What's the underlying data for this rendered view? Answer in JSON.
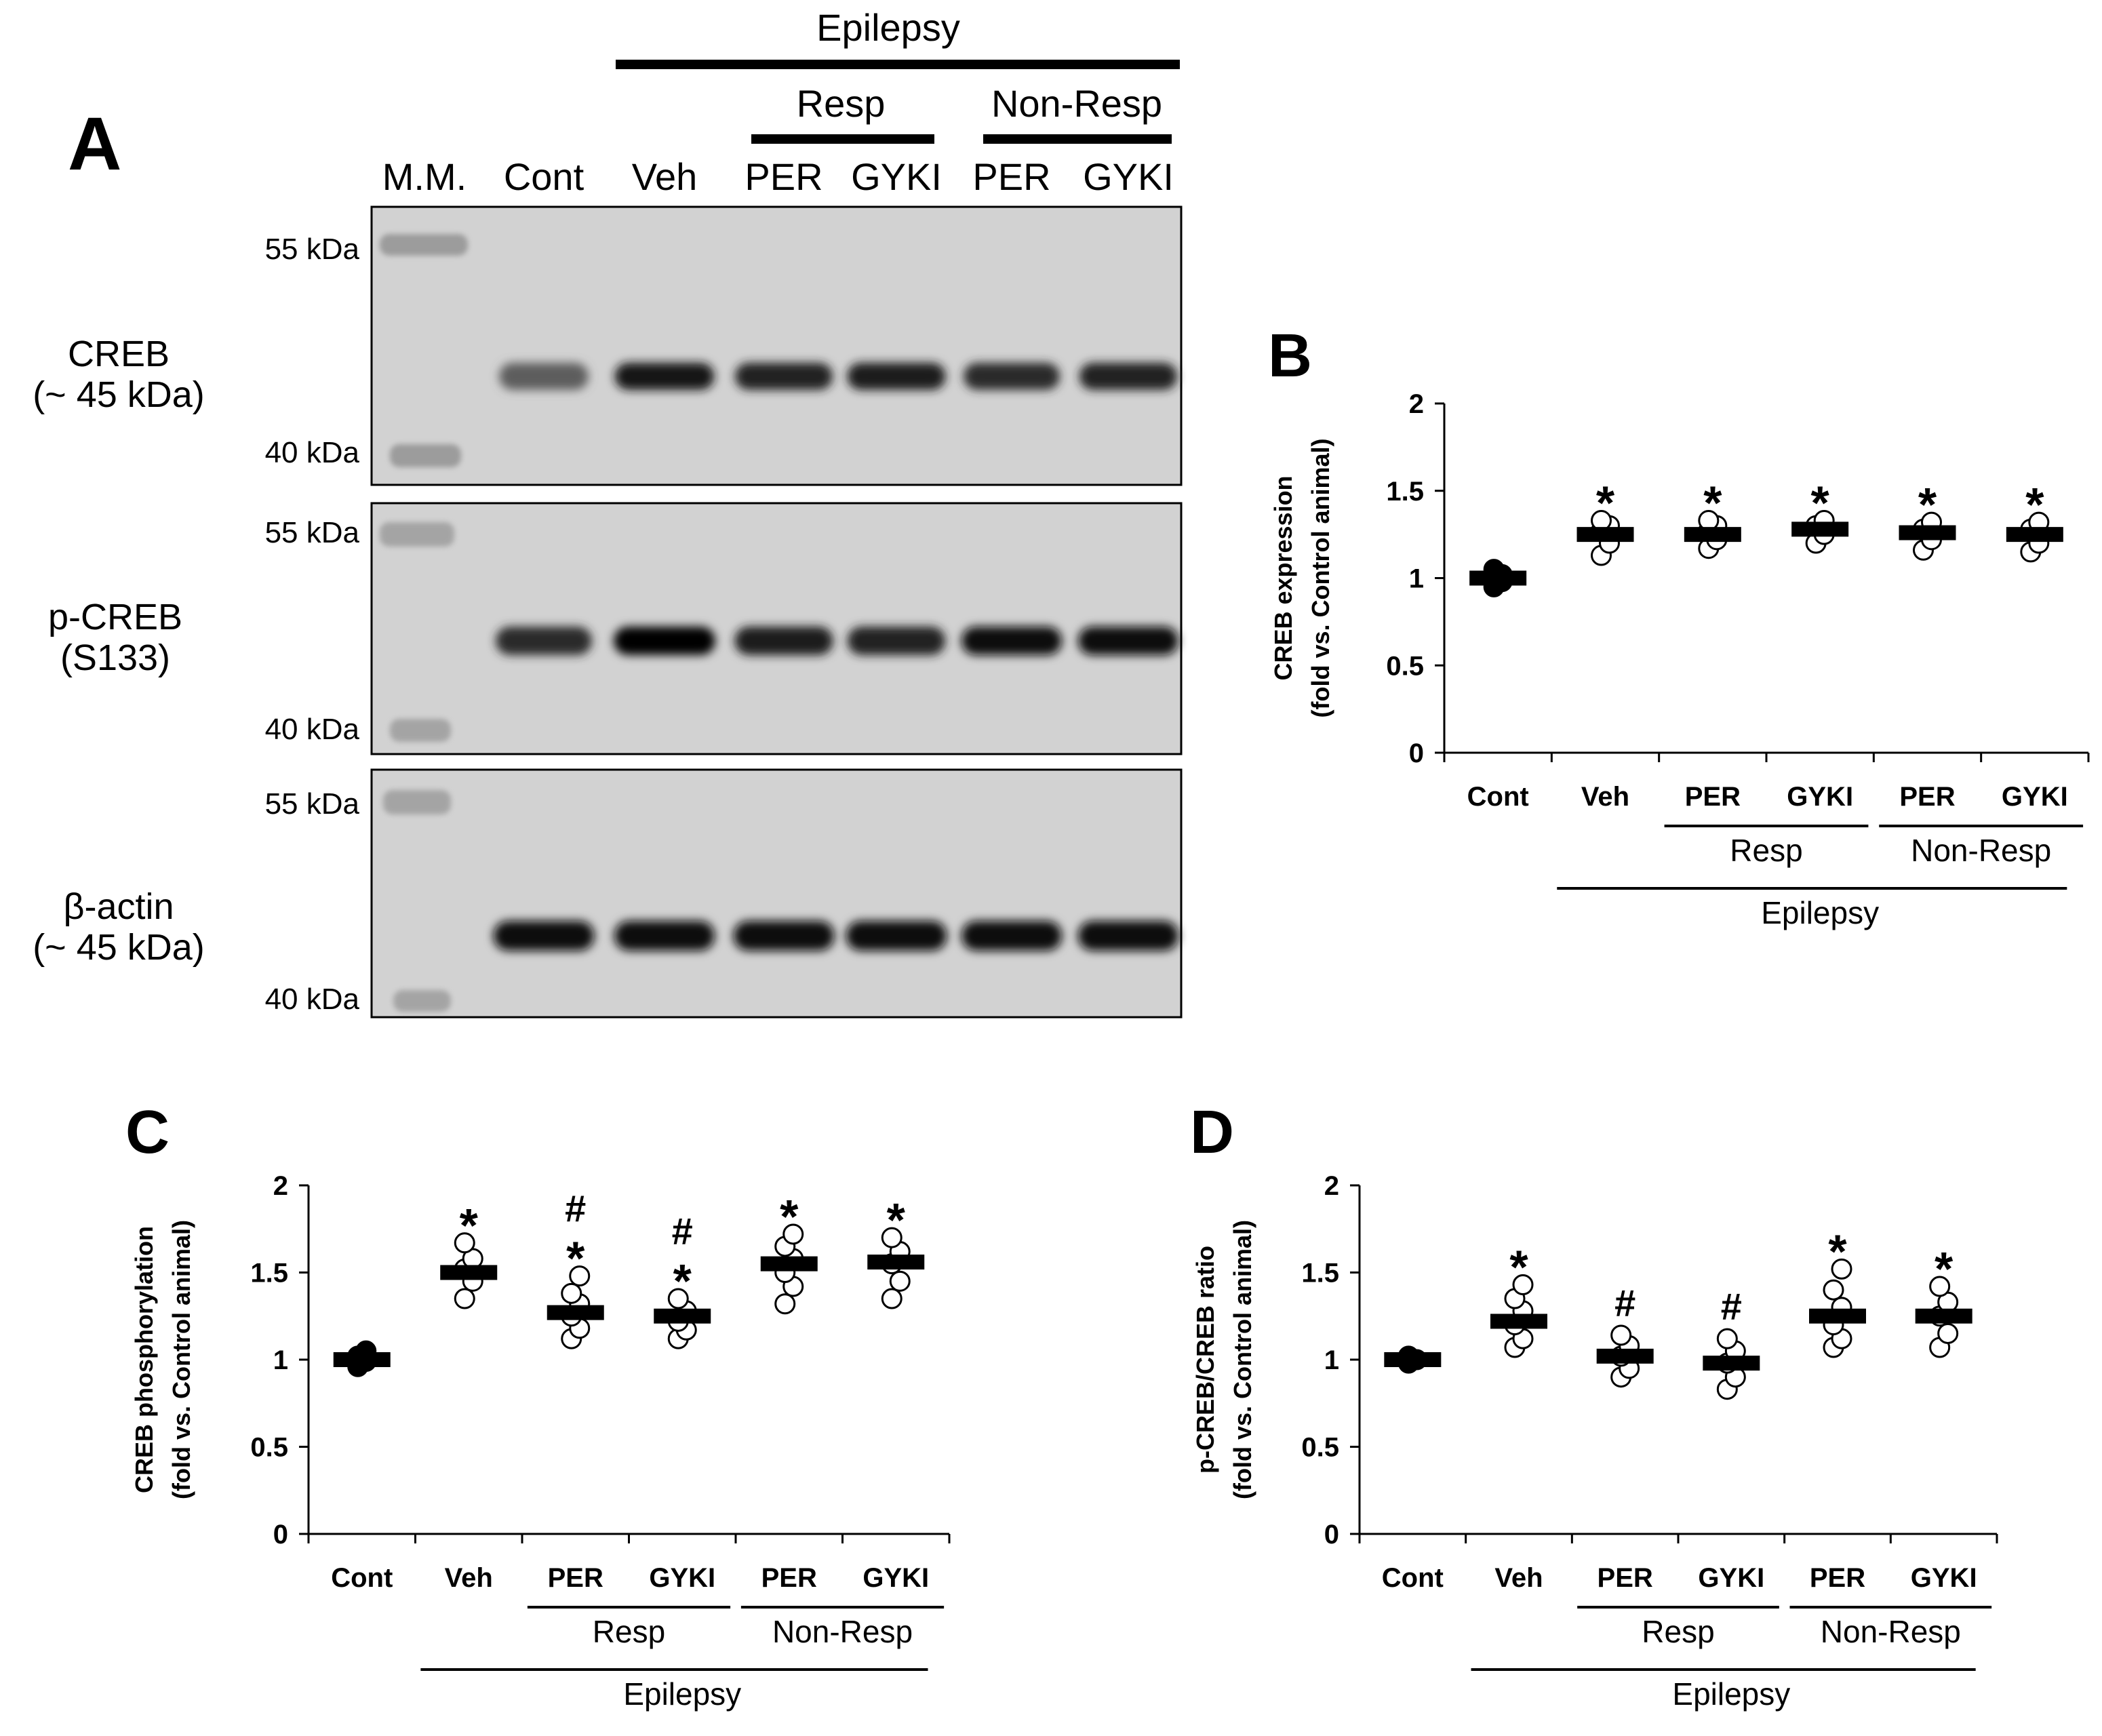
{
  "blot": {
    "panel_label": "A",
    "group_top": "Epilepsy",
    "group_resp": "Resp",
    "group_nonresp": "Non-Resp",
    "lanes": [
      "M.M.",
      "Cont",
      "Veh",
      "PER",
      "GYKI",
      "PER",
      "GYKI"
    ],
    "rows": [
      {
        "label_line1": "CREB",
        "label_line2": "(~ 45 kDa)",
        "marker_top": "55 kDa",
        "marker_bottom": "40 kDa",
        "band_intensity": [
          0,
          0.55,
          0.92,
          0.85,
          0.88,
          0.8,
          0.86
        ]
      },
      {
        "label_line1": "p-CREB",
        "label_line2": "(S133)",
        "marker_top": "55 kDa",
        "marker_bottom": "40 kDa",
        "band_intensity": [
          0,
          0.8,
          1.0,
          0.88,
          0.86,
          0.95,
          0.95
        ]
      },
      {
        "label_line1": "β-actin",
        "label_line2": "(~ 45 kDa)",
        "marker_top": "55 kDa",
        "marker_bottom": "40 kDa",
        "band_intensity": [
          0,
          0.97,
          0.95,
          0.97,
          0.97,
          0.95,
          0.96
        ]
      }
    ]
  },
  "chart_data": [
    {
      "panel_label": "B",
      "type": "scatter",
      "ylabel_line1": "CREB expression",
      "ylabel_line2": "(fold vs. Control animal)",
      "ylim": [
        0,
        2
      ],
      "yticks": [
        "0",
        "0.5",
        "1",
        "1.5",
        "2"
      ],
      "categories": [
        "Cont",
        "Veh",
        "PER",
        "GYKI",
        "PER",
        "GYKI"
      ],
      "group_resp": "Resp",
      "group_nonresp": "Non-Resp",
      "group_epilepsy": "Epilepsy",
      "means": [
        1.0,
        1.25,
        1.25,
        1.28,
        1.26,
        1.25
      ],
      "points": [
        [
          0.95,
          0.98,
          1.0,
          1.02,
          1.05
        ],
        [
          1.13,
          1.2,
          1.27,
          1.3,
          1.33
        ],
        [
          1.17,
          1.22,
          1.27,
          1.3,
          1.33
        ],
        [
          1.2,
          1.25,
          1.3,
          1.33
        ],
        [
          1.16,
          1.22,
          1.28,
          1.32
        ],
        [
          1.15,
          1.2,
          1.28,
          1.32
        ]
      ],
      "markers": [
        "",
        "*",
        "*",
        "*",
        "*",
        "*"
      ]
    },
    {
      "panel_label": "C",
      "type": "scatter",
      "ylabel_line1": "CREB phosphorylation",
      "ylabel_line2": "(fold vs. Control animal)",
      "ylim": [
        0,
        2
      ],
      "yticks": [
        "0",
        "0.5",
        "1",
        "1.5",
        "2"
      ],
      "categories": [
        "Cont",
        "Veh",
        "PER",
        "GYKI",
        "PER",
        "GYKI"
      ],
      "group_resp": "Resp",
      "group_nonresp": "Non-Resp",
      "group_epilepsy": "Epilepsy",
      "means": [
        1.0,
        1.5,
        1.27,
        1.25,
        1.55,
        1.56
      ],
      "points": [
        [
          0.96,
          0.99,
          1.02,
          1.05
        ],
        [
          1.35,
          1.45,
          1.52,
          1.58,
          1.67
        ],
        [
          1.12,
          1.18,
          1.25,
          1.32,
          1.38,
          1.48
        ],
        [
          1.12,
          1.17,
          1.22,
          1.28,
          1.35
        ],
        [
          1.32,
          1.42,
          1.5,
          1.58,
          1.65,
          1.72
        ],
        [
          1.35,
          1.45,
          1.55,
          1.62,
          1.7
        ]
      ],
      "markers": [
        "",
        "*",
        "#*",
        "#*",
        "*",
        "*"
      ]
    },
    {
      "panel_label": "D",
      "type": "scatter",
      "ylabel_line1": "p-CREB/CREB ratio",
      "ylabel_line2": "(fold vs. Control animal)",
      "ylim": [
        0,
        2
      ],
      "yticks": [
        "0",
        "0.5",
        "1",
        "1.5",
        "2"
      ],
      "categories": [
        "Cont",
        "Veh",
        "PER",
        "GYKI",
        "PER",
        "GYKI"
      ],
      "group_resp": "Resp",
      "group_nonresp": "Non-Resp",
      "group_epilepsy": "Epilepsy",
      "means": [
        1.0,
        1.22,
        1.02,
        0.98,
        1.25,
        1.25
      ],
      "points": [
        [
          0.98,
          1.0,
          1.02
        ],
        [
          1.07,
          1.12,
          1.2,
          1.28,
          1.35,
          1.43
        ],
        [
          0.9,
          0.95,
          1.02,
          1.08,
          1.14
        ],
        [
          0.83,
          0.9,
          0.98,
          1.05,
          1.12
        ],
        [
          1.07,
          1.12,
          1.2,
          1.3,
          1.4,
          1.52
        ],
        [
          1.07,
          1.15,
          1.25,
          1.33,
          1.42
        ]
      ],
      "markers": [
        "",
        "*",
        "#",
        "#",
        "*",
        "*"
      ]
    }
  ]
}
